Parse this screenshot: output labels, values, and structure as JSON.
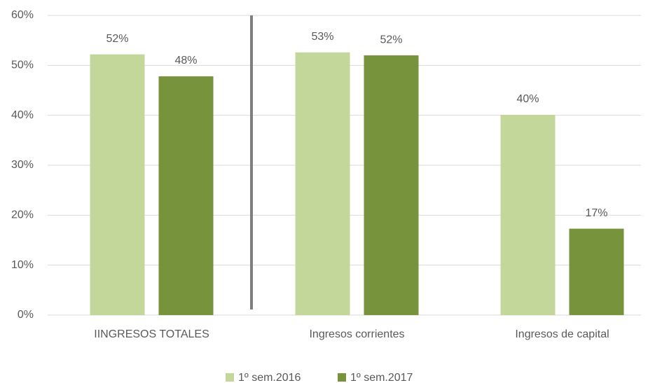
{
  "chart_data": {
    "type": "bar",
    "categories": [
      "IINGRESOS TOTALES",
      "Ingresos corrientes",
      "Ingresos de capital"
    ],
    "series": [
      {
        "name": "1º sem.2016",
        "color": "#c4d79b",
        "values": [
          52.2,
          52.6,
          40.1
        ],
        "value_labels": [
          "52%",
          "53%",
          "40%"
        ]
      },
      {
        "name": "1º sem.2017",
        "color": "#77933c",
        "values": [
          47.8,
          52,
          17.3
        ],
        "value_labels": [
          "48%",
          "52%",
          "17%"
        ]
      }
    ],
    "ylim": [
      0,
      60
    ],
    "yticks": [
      {
        "value": 0,
        "label": "0%"
      },
      {
        "value": 10,
        "label": "10%"
      },
      {
        "value": 20,
        "label": "20%"
      },
      {
        "value": 30,
        "label": "30%"
      },
      {
        "value": 40,
        "label": "40%"
      },
      {
        "value": 50,
        "label": "50%"
      },
      {
        "value": 60,
        "label": "60%"
      }
    ],
    "grid": true,
    "legend": "bottom"
  }
}
